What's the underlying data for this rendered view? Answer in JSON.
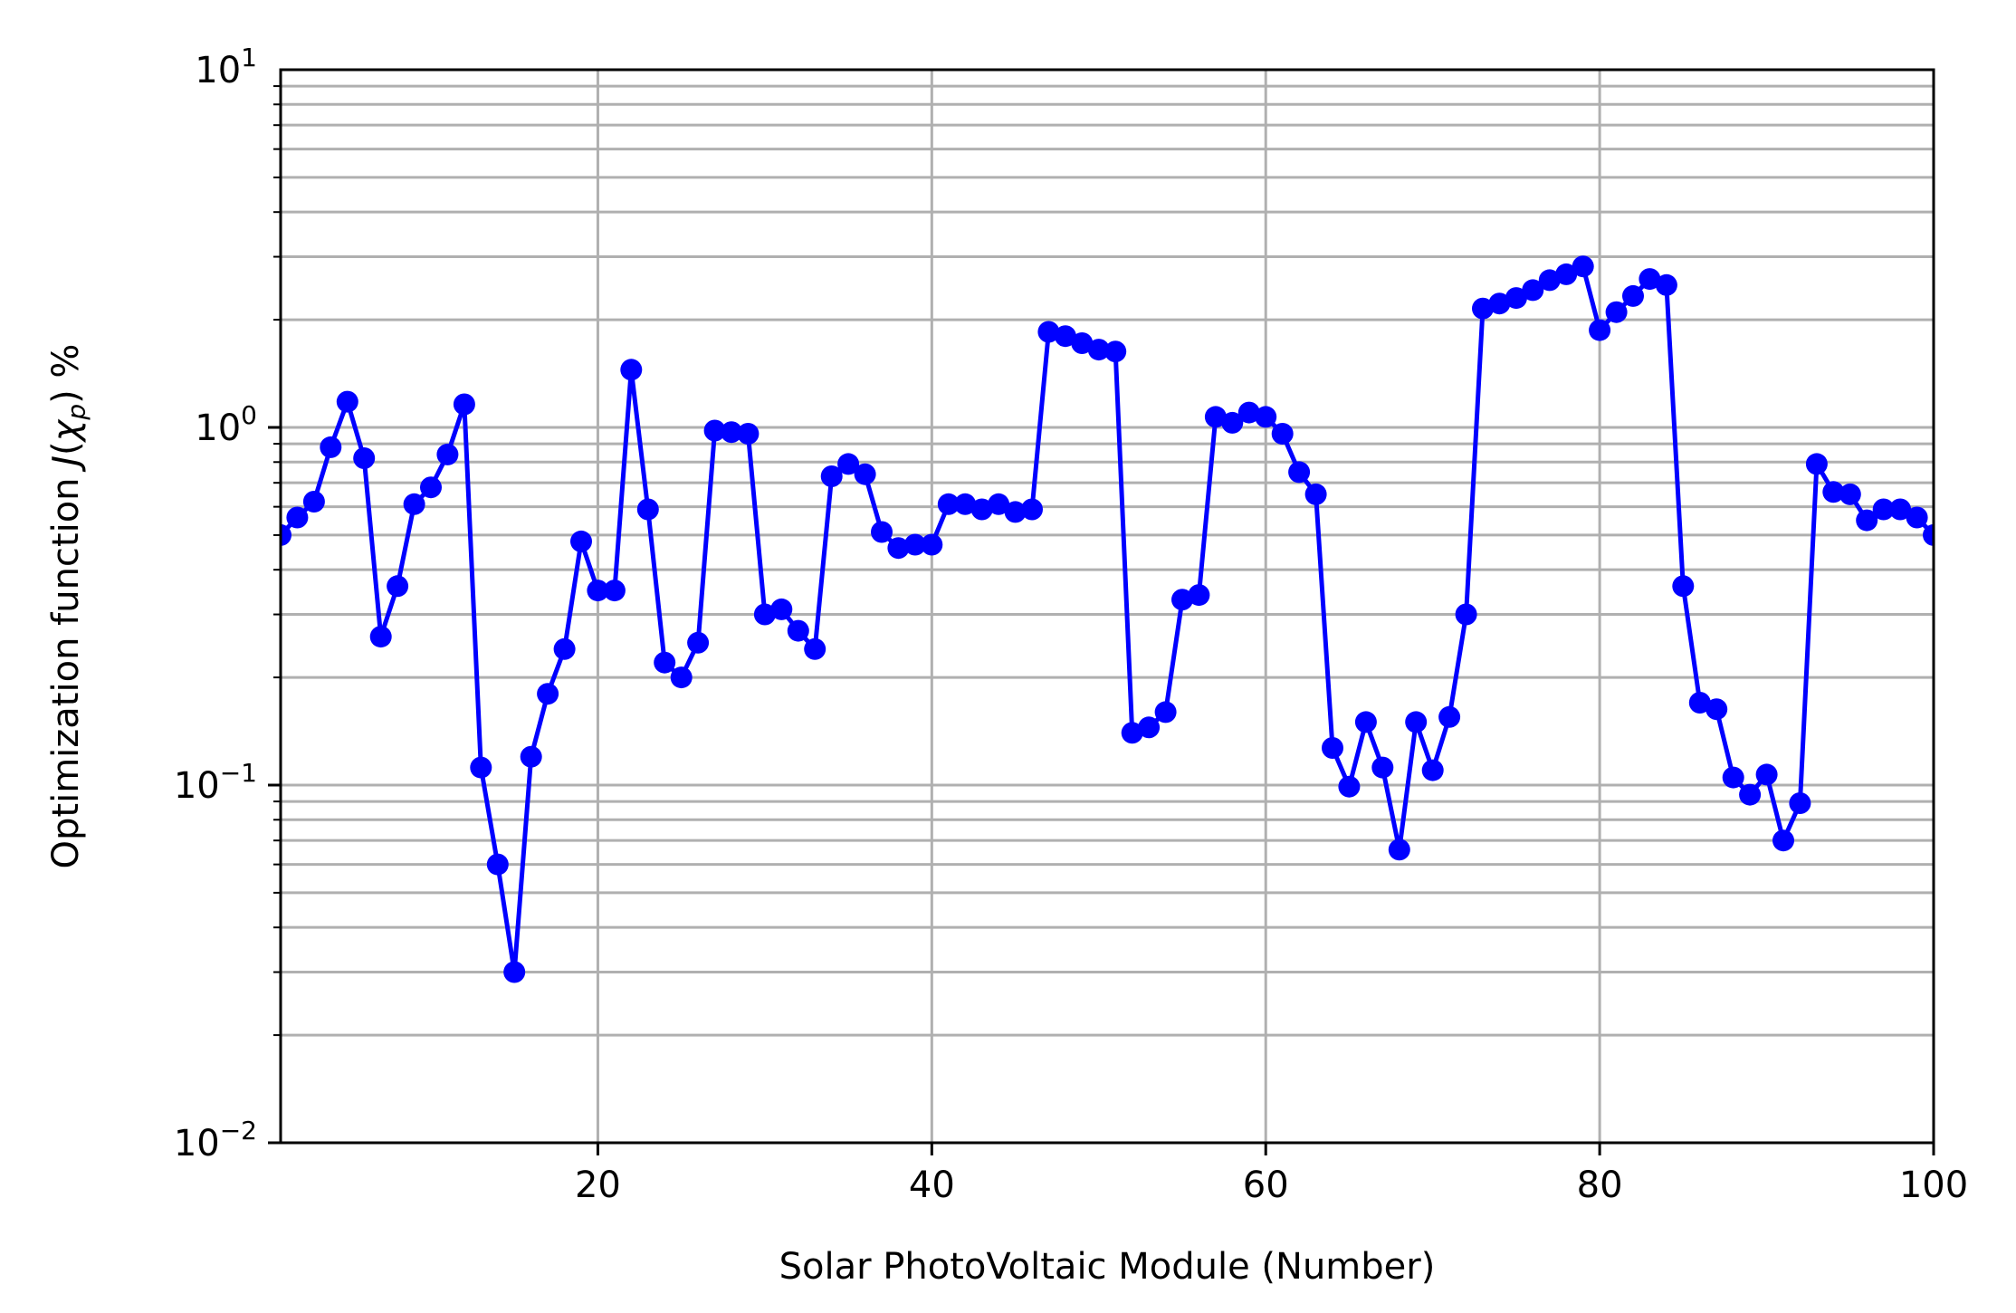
{
  "chart_data": {
    "type": "line",
    "title": "",
    "xlabel": "Solar PhotoVoltaic Module (Number)",
    "ylabel": {
      "prefix": "Optimization function ",
      "symbol": "J",
      "open": "(",
      "chi": "χ",
      "sub": "p",
      "close": ")",
      "suffix": " %"
    },
    "y_scale": "log",
    "xlim": [
      1,
      100
    ],
    "ylim": [
      0.01,
      10
    ],
    "grid": true,
    "legend": "none",
    "x_ticks": [
      {
        "value": 20,
        "label": "20"
      },
      {
        "value": 40,
        "label": "40"
      },
      {
        "value": 60,
        "label": "60"
      },
      {
        "value": 80,
        "label": "80"
      },
      {
        "value": 100,
        "label": "100"
      }
    ],
    "y_ticks": [
      {
        "value": 0.01,
        "base": "10",
        "exp": "−2"
      },
      {
        "value": 0.1,
        "base": "10",
        "exp": "−1"
      },
      {
        "value": 1,
        "base": "10",
        "exp": "0"
      },
      {
        "value": 10,
        "base": "10",
        "exp": "1"
      }
    ],
    "series": [
      {
        "color": "#0000ff",
        "marker": "circle",
        "x": [
          1,
          2,
          3,
          4,
          5,
          6,
          7,
          8,
          9,
          10,
          11,
          12,
          13,
          14,
          15,
          16,
          17,
          18,
          19,
          20,
          21,
          22,
          23,
          24,
          25,
          26,
          27,
          28,
          29,
          30,
          31,
          32,
          33,
          34,
          35,
          36,
          37,
          38,
          39,
          40,
          41,
          42,
          43,
          44,
          45,
          46,
          47,
          48,
          49,
          50,
          51,
          52,
          53,
          54,
          55,
          56,
          57,
          58,
          59,
          60,
          61,
          62,
          63,
          64,
          65,
          66,
          67,
          68,
          69,
          70,
          71,
          72,
          73,
          74,
          75,
          76,
          77,
          78,
          79,
          80,
          81,
          82,
          83,
          84,
          85,
          86,
          87,
          88,
          89,
          90,
          91,
          92,
          93,
          94,
          95,
          96,
          97,
          98,
          99,
          100
        ],
        "values": [
          0.5,
          0.56,
          0.62,
          0.88,
          1.18,
          0.82,
          0.26,
          0.36,
          0.61,
          0.68,
          0.84,
          1.16,
          0.112,
          0.06,
          0.03,
          0.12,
          0.18,
          0.24,
          0.48,
          0.35,
          0.35,
          1.45,
          0.59,
          0.22,
          0.2,
          0.25,
          0.98,
          0.97,
          0.96,
          0.3,
          0.31,
          0.27,
          0.24,
          0.73,
          0.79,
          0.74,
          0.51,
          0.46,
          0.47,
          0.47,
          0.61,
          0.61,
          0.59,
          0.61,
          0.58,
          0.59,
          1.85,
          1.8,
          1.72,
          1.65,
          1.63,
          0.14,
          0.145,
          0.16,
          0.33,
          0.34,
          1.07,
          1.03,
          1.1,
          1.07,
          0.96,
          0.75,
          0.65,
          0.127,
          0.099,
          0.15,
          0.112,
          0.066,
          0.15,
          0.11,
          0.155,
          0.3,
          2.15,
          2.22,
          2.3,
          2.42,
          2.58,
          2.68,
          2.82,
          1.87,
          2.1,
          2.33,
          2.6,
          2.5,
          0.36,
          0.17,
          0.163,
          0.105,
          0.094,
          0.107,
          0.07,
          0.089,
          0.79,
          0.66,
          0.65,
          0.55,
          0.59,
          0.59,
          0.56,
          0.5
        ]
      }
    ]
  }
}
